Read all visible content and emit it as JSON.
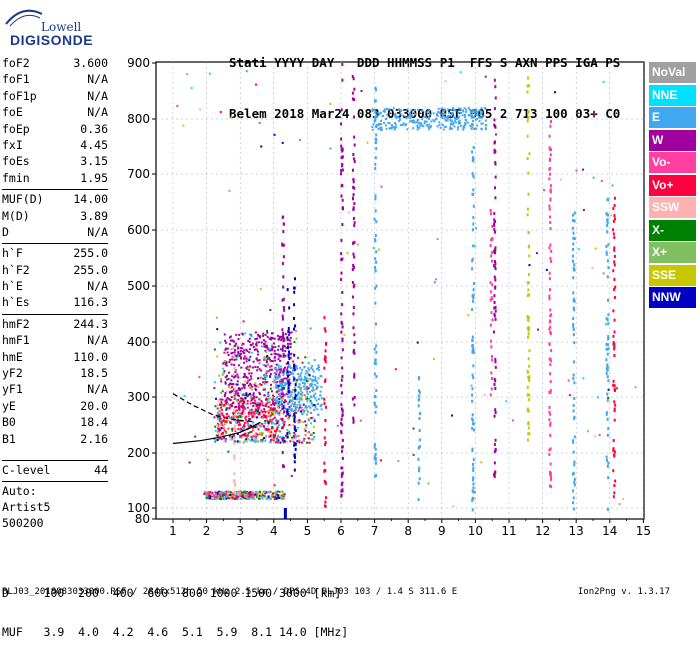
{
  "logo": {
    "line1": "Lowell",
    "line2": "DIGISONDE"
  },
  "header": {
    "labels": "Stati YYYY DAY   DDD HHMMSS P1  FFS S AXN PPS IGA PS",
    "values": "Belem 2018 Mar24 083 033000 RSF 005 2 713 100 03+ C0"
  },
  "params": [
    {
      "name": "foF2",
      "value": "3.600"
    },
    {
      "name": "foF1",
      "value": "N/A"
    },
    {
      "name": "foF1p",
      "value": "N/A"
    },
    {
      "name": "foE",
      "value": "N/A"
    },
    {
      "name": "foEp",
      "value": "0.36"
    },
    {
      "name": "fxI",
      "value": "4.45"
    },
    {
      "name": "foEs",
      "value": "3.15"
    },
    {
      "name": "fmin",
      "value": "1.95",
      "sep_after": true
    },
    {
      "name": "MUF(D)",
      "value": "14.00"
    },
    {
      "name": "M(D)",
      "value": "3.89"
    },
    {
      "name": "D",
      "value": "N/A",
      "sep_after": true
    },
    {
      "name": "h`F",
      "value": "255.0"
    },
    {
      "name": "h`F2",
      "value": "255.0"
    },
    {
      "name": "h`E",
      "value": "N/A"
    },
    {
      "name": "h`Es",
      "value": "116.3",
      "sep_after": true
    },
    {
      "name": "hmF2",
      "value": "244.3"
    },
    {
      "name": "hmF1",
      "value": "N/A"
    },
    {
      "name": "hmE",
      "value": "110.0"
    },
    {
      "name": "yF2",
      "value": "18.5"
    },
    {
      "name": "yF1",
      "value": "N/A"
    },
    {
      "name": "yE",
      "value": "20.0"
    },
    {
      "name": "B0",
      "value": "18.4"
    },
    {
      "name": "B1",
      "value": "2.16"
    }
  ],
  "clevel": {
    "name": "C-level",
    "value": "44"
  },
  "auto": {
    "line1": "Auto:",
    "line2": "Artist5",
    "line3": "500200"
  },
  "muf_table": {
    "d_row": "D     100  200  400  600  800 1000 1500 3000 [km]",
    "muf_row": "MUF   3.9  4.0  4.2  4.6  5.1  5.9  8.1 14.0 [MHz]"
  },
  "footer": "BLJ03_2018083033000.RSF / 284fx512h 50 kHz 2.5 km / DPS-4D BLJ03 103 / 1.4 S 311.6 E",
  "version": "Ion2Png v. 1.3.17",
  "legend": [
    {
      "label": "NoVal",
      "color": "#a0a0a0"
    },
    {
      "label": "NNE",
      "color": "#00e0ff"
    },
    {
      "label": "E",
      "color": "#40a8f0"
    },
    {
      "label": "W",
      "color": "#a000a0"
    },
    {
      "label": "Vo-",
      "color": "#ff40a0"
    },
    {
      "label": "Vo+",
      "color": "#ff0040"
    },
    {
      "label": "SSW",
      "color": "#ffb0b0"
    },
    {
      "label": "X-",
      "color": "#008000"
    },
    {
      "label": "X+",
      "color": "#80c060"
    },
    {
      "label": "SSE",
      "color": "#c8c800"
    },
    {
      "label": "NNW",
      "color": "#0000c0"
    }
  ],
  "chart_data": {
    "type": "scatter",
    "xlabel": "",
    "ylabel": "",
    "xlim": [
      0.7,
      15
    ],
    "ylim": [
      80,
      900
    ],
    "x_ticks": [
      "1",
      "2",
      "3",
      "4",
      "5",
      "6",
      "7",
      "8",
      "9",
      "10",
      "11",
      "12",
      "13",
      "14",
      "15"
    ],
    "y_ticks": [
      "80",
      "100",
      "200",
      "300",
      "400",
      "500",
      "600",
      "700",
      "800",
      "900"
    ],
    "grid": true,
    "profile_curves": [
      {
        "name": "",
        "style": "solid",
        "x": [
          1.0,
          1.8,
          2.4,
          3.0,
          3.3,
          3.6
        ],
        "y": [
          217,
          222,
          228,
          237,
          245,
          255
        ]
      },
      {
        "name": "",
        "style": "dashed",
        "x": [
          1.0,
          1.6,
          2.2,
          2.6,
          3.0,
          3.4
        ],
        "y": [
          306,
          285,
          268,
          262,
          258,
          256
        ]
      }
    ],
    "echo_clusters": [
      {
        "name": "E",
        "x_range": [
          6.9,
          10.3
        ],
        "y_range": [
          782,
          822
        ],
        "color": "#40a8f0"
      },
      {
        "name": "Vo+",
        "x_range": [
          1.9,
          3.4
        ],
        "y_range": [
          120,
          130
        ],
        "color": "#ff0040"
      },
      {
        "name": "Vo+",
        "x_range": [
          2.3,
          4.1
        ],
        "y_range": [
          230,
          300
        ],
        "color": "#ff0040"
      },
      {
        "name": "W",
        "x_range": [
          2.5,
          4.5
        ],
        "y_range": [
          280,
          420
        ],
        "color": "#a000a0"
      },
      {
        "name": "E",
        "x_range": [
          4.0,
          5.4
        ],
        "y_range": [
          270,
          360
        ],
        "color": "#40a8f0"
      }
    ]
  }
}
